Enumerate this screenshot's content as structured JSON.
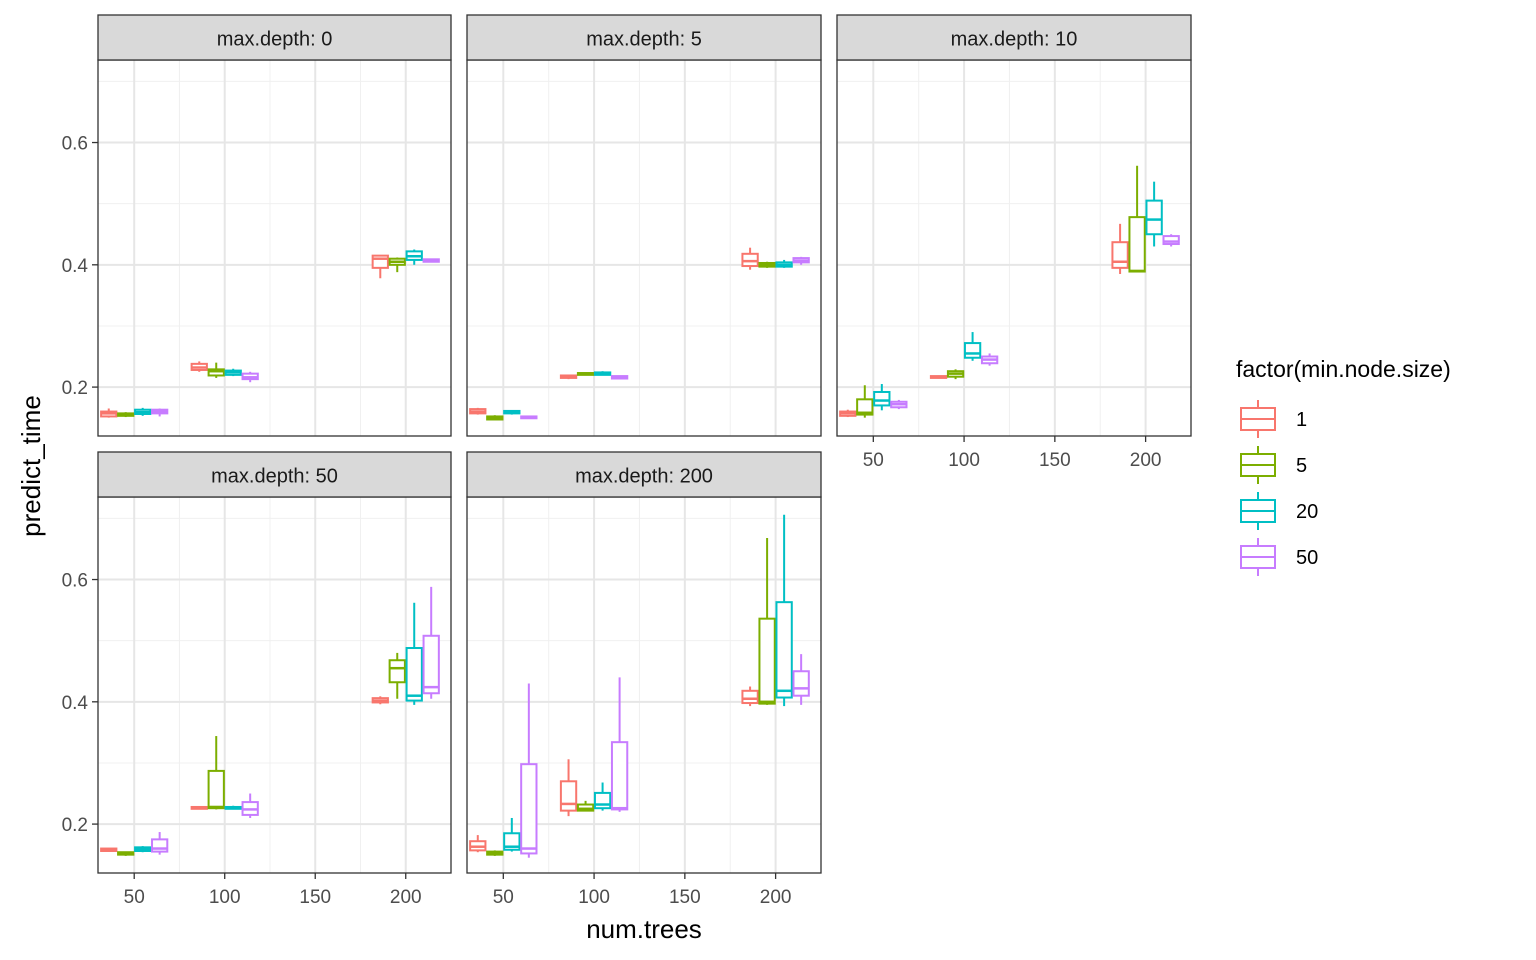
{
  "chart_data": {
    "type": "boxplot",
    "facet_by": "max.depth",
    "xlabel": "num.trees",
    "ylabel": "predict_time",
    "x_ticks": [
      50,
      100,
      150,
      200
    ],
    "xlim": [
      30,
      225
    ],
    "ylim": [
      0.12,
      0.735
    ],
    "y_ticks": [
      0.2,
      0.4,
      0.6
    ],
    "grid": true,
    "legend": {
      "title": "factor(min.node.size)",
      "placement": "right",
      "entries": [
        {
          "label": "1",
          "color": "#F8766D"
        },
        {
          "label": "5",
          "color": "#7CAE00"
        },
        {
          "label": "20",
          "color": "#00BFC4"
        },
        {
          "label": "50",
          "color": "#C77CFF"
        }
      ]
    },
    "panels": [
      {
        "strip": "max.depth: 0",
        "boxes": [
          {
            "x": 50,
            "group": "1",
            "stats": [
              0.15,
              0.152,
              0.157,
              0.16,
              0.165
            ]
          },
          {
            "x": 50,
            "group": "5",
            "stats": [
              0.151,
              0.153,
              0.155,
              0.157,
              0.159
            ]
          },
          {
            "x": 50,
            "group": "20",
            "stats": [
              0.153,
              0.156,
              0.159,
              0.163,
              0.166
            ]
          },
          {
            "x": 50,
            "group": "50",
            "stats": [
              0.152,
              0.157,
              0.16,
              0.163,
              0.165
            ]
          },
          {
            "x": 100,
            "group": "1",
            "stats": [
              0.225,
              0.228,
              0.232,
              0.238,
              0.242
            ]
          },
          {
            "x": 100,
            "group": "5",
            "stats": [
              0.215,
              0.219,
              0.226,
              0.229,
              0.24
            ]
          },
          {
            "x": 100,
            "group": "20",
            "stats": [
              0.218,
              0.22,
              0.224,
              0.227,
              0.23
            ]
          },
          {
            "x": 100,
            "group": "50",
            "stats": [
              0.208,
              0.213,
              0.216,
              0.222,
              0.225
            ]
          },
          {
            "x": 200,
            "group": "1",
            "stats": [
              0.378,
              0.395,
              0.41,
              0.415,
              0.416
            ]
          },
          {
            "x": 200,
            "group": "5",
            "stats": [
              0.388,
              0.4,
              0.405,
              0.41,
              0.412
            ]
          },
          {
            "x": 200,
            "group": "20",
            "stats": [
              0.4,
              0.408,
              0.414,
              0.422,
              0.425
            ]
          },
          {
            "x": 200,
            "group": "50",
            "stats": [
              0.404,
              0.405,
              0.407,
              0.409,
              0.41
            ]
          }
        ]
      },
      {
        "strip": "max.depth: 5",
        "boxes": [
          {
            "x": 50,
            "group": "1",
            "stats": [
              0.155,
              0.157,
              0.16,
              0.164,
              0.166
            ]
          },
          {
            "x": 50,
            "group": "5",
            "stats": [
              0.146,
              0.147,
              0.149,
              0.152,
              0.154
            ]
          },
          {
            "x": 50,
            "group": "20",
            "stats": [
              0.155,
              0.157,
              0.158,
              0.161,
              0.162
            ]
          },
          {
            "x": 50,
            "group": "50",
            "stats": [
              0.148,
              0.149,
              0.15,
              0.152,
              0.153
            ]
          },
          {
            "x": 100,
            "group": "1",
            "stats": [
              0.213,
              0.215,
              0.217,
              0.219,
              0.22
            ]
          },
          {
            "x": 100,
            "group": "5",
            "stats": [
              0.219,
              0.22,
              0.222,
              0.223,
              0.224
            ]
          },
          {
            "x": 100,
            "group": "20",
            "stats": [
              0.219,
              0.22,
              0.222,
              0.224,
              0.226
            ]
          },
          {
            "x": 100,
            "group": "50",
            "stats": [
              0.213,
              0.214,
              0.216,
              0.218,
              0.219
            ]
          },
          {
            "x": 200,
            "group": "1",
            "stats": [
              0.392,
              0.398,
              0.406,
              0.418,
              0.428
            ]
          },
          {
            "x": 200,
            "group": "5",
            "stats": [
              0.395,
              0.397,
              0.4,
              0.403,
              0.405
            ]
          },
          {
            "x": 200,
            "group": "20",
            "stats": [
              0.395,
              0.397,
              0.4,
              0.404,
              0.408
            ]
          },
          {
            "x": 200,
            "group": "50",
            "stats": [
              0.4,
              0.404,
              0.407,
              0.411,
              0.413
            ]
          }
        ]
      },
      {
        "strip": "max.depth: 10",
        "boxes": [
          {
            "x": 50,
            "group": "1",
            "stats": [
              0.151,
              0.153,
              0.157,
              0.16,
              0.163
            ]
          },
          {
            "x": 50,
            "group": "5",
            "stats": [
              0.15,
              0.155,
              0.158,
              0.18,
              0.203
            ]
          },
          {
            "x": 50,
            "group": "20",
            "stats": [
              0.162,
              0.17,
              0.178,
              0.192,
              0.205
            ]
          },
          {
            "x": 50,
            "group": "50",
            "stats": [
              0.164,
              0.167,
              0.172,
              0.176,
              0.179
            ]
          },
          {
            "x": 100,
            "group": "1",
            "stats": [
              0.214,
              0.215,
              0.216,
              0.218,
              0.219
            ]
          },
          {
            "x": 100,
            "group": "5",
            "stats": [
              0.213,
              0.217,
              0.222,
              0.226,
              0.229
            ]
          },
          {
            "x": 100,
            "group": "20",
            "stats": [
              0.243,
              0.248,
              0.255,
              0.272,
              0.29
            ]
          },
          {
            "x": 100,
            "group": "50",
            "stats": [
              0.235,
              0.239,
              0.245,
              0.25,
              0.255
            ]
          },
          {
            "x": 200,
            "group": "1",
            "stats": [
              0.385,
              0.395,
              0.405,
              0.437,
              0.467
            ]
          },
          {
            "x": 200,
            "group": "5",
            "stats": [
              0.388,
              0.389,
              0.39,
              0.478,
              0.562
            ]
          },
          {
            "x": 200,
            "group": "20",
            "stats": [
              0.43,
              0.45,
              0.474,
              0.505,
              0.536
            ]
          },
          {
            "x": 200,
            "group": "50",
            "stats": [
              0.43,
              0.434,
              0.438,
              0.447,
              0.45
            ]
          }
        ]
      },
      {
        "strip": "max.depth: 50",
        "boxes": [
          {
            "x": 50,
            "group": "1",
            "stats": [
              0.155,
              0.156,
              0.158,
              0.16,
              0.161
            ]
          },
          {
            "x": 50,
            "group": "5",
            "stats": [
              0.148,
              0.15,
              0.152,
              0.154,
              0.155
            ]
          },
          {
            "x": 50,
            "group": "20",
            "stats": [
              0.154,
              0.156,
              0.159,
              0.162,
              0.164
            ]
          },
          {
            "x": 50,
            "group": "50",
            "stats": [
              0.15,
              0.155,
              0.16,
              0.175,
              0.187
            ]
          },
          {
            "x": 100,
            "group": "1",
            "stats": [
              0.224,
              0.225,
              0.226,
              0.228,
              0.229
            ]
          },
          {
            "x": 100,
            "group": "5",
            "stats": [
              0.224,
              0.226,
              0.228,
              0.287,
              0.344
            ]
          },
          {
            "x": 100,
            "group": "20",
            "stats": [
              0.224,
              0.225,
              0.227,
              0.228,
              0.23
            ]
          },
          {
            "x": 100,
            "group": "50",
            "stats": [
              0.21,
              0.215,
              0.224,
              0.236,
              0.25
            ]
          },
          {
            "x": 200,
            "group": "1",
            "stats": [
              0.396,
              0.399,
              0.402,
              0.406,
              0.409
            ]
          },
          {
            "x": 200,
            "group": "5",
            "stats": [
              0.405,
              0.432,
              0.455,
              0.468,
              0.48
            ]
          },
          {
            "x": 200,
            "group": "20",
            "stats": [
              0.395,
              0.402,
              0.41,
              0.488,
              0.562
            ]
          },
          {
            "x": 200,
            "group": "50",
            "stats": [
              0.405,
              0.414,
              0.424,
              0.508,
              0.588
            ]
          }
        ]
      },
      {
        "strip": "max.depth: 200",
        "boxes": [
          {
            "x": 50,
            "group": "1",
            "stats": [
              0.154,
              0.157,
              0.163,
              0.172,
              0.182
            ]
          },
          {
            "x": 50,
            "group": "5",
            "stats": [
              0.148,
              0.15,
              0.152,
              0.155,
              0.157
            ]
          },
          {
            "x": 50,
            "group": "20",
            "stats": [
              0.155,
              0.158,
              0.163,
              0.185,
              0.21
            ]
          },
          {
            "x": 50,
            "group": "50",
            "stats": [
              0.145,
              0.152,
              0.16,
              0.298,
              0.43
            ]
          },
          {
            "x": 100,
            "group": "1",
            "stats": [
              0.213,
              0.222,
              0.233,
              0.27,
              0.306
            ]
          },
          {
            "x": 100,
            "group": "5",
            "stats": [
              0.221,
              0.222,
              0.225,
              0.232,
              0.238
            ]
          },
          {
            "x": 100,
            "group": "20",
            "stats": [
              0.222,
              0.226,
              0.232,
              0.251,
              0.268
            ]
          },
          {
            "x": 100,
            "group": "50",
            "stats": [
              0.22,
              0.224,
              0.226,
              0.334,
              0.44
            ]
          },
          {
            "x": 200,
            "group": "1",
            "stats": [
              0.393,
              0.398,
              0.405,
              0.418,
              0.425
            ]
          },
          {
            "x": 200,
            "group": "5",
            "stats": [
              0.395,
              0.397,
              0.4,
              0.536,
              0.668
            ]
          },
          {
            "x": 200,
            "group": "20",
            "stats": [
              0.393,
              0.407,
              0.418,
              0.563,
              0.706
            ]
          },
          {
            "x": 200,
            "group": "50",
            "stats": [
              0.395,
              0.41,
              0.422,
              0.45,
              0.478
            ]
          }
        ]
      }
    ]
  }
}
